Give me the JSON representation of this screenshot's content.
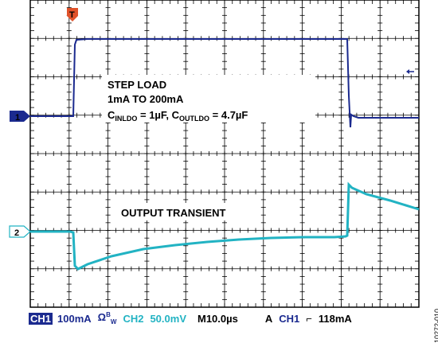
{
  "annotations": {
    "step_load": "STEP LOAD",
    "range": "1mA TO 200mA",
    "cap_prefix_in": "C",
    "cap_sub_in": "INLDO",
    "cap_mid": " = 1µF, C",
    "cap_sub_out": "OUTLDO",
    "cap_suffix": " = 4.7µF",
    "output_transient": "OUTPUT TRANSIENT"
  },
  "markers": {
    "ch1": "1",
    "ch2": "2",
    "trigger": "T"
  },
  "footer": {
    "ch1_label": "CH1",
    "ch1_scale": "100mA",
    "ch1_bw": "Ω",
    "ch1_bw_sup": "B",
    "ch1_bw_sub": "W",
    "ch2_label": "CH2",
    "ch2_scale": "50.0mV",
    "timebase": "M10.0µs",
    "trigger_mode": "A",
    "trigger_src": "CH1",
    "trigger_slope": "⌐",
    "trigger_level": "118mA"
  },
  "figure_id": "10272-010",
  "colors": {
    "ch1": "#1b2a8f",
    "ch2": "#22b3c3",
    "trigger": "#e0522a",
    "grid": "#000000"
  }
}
